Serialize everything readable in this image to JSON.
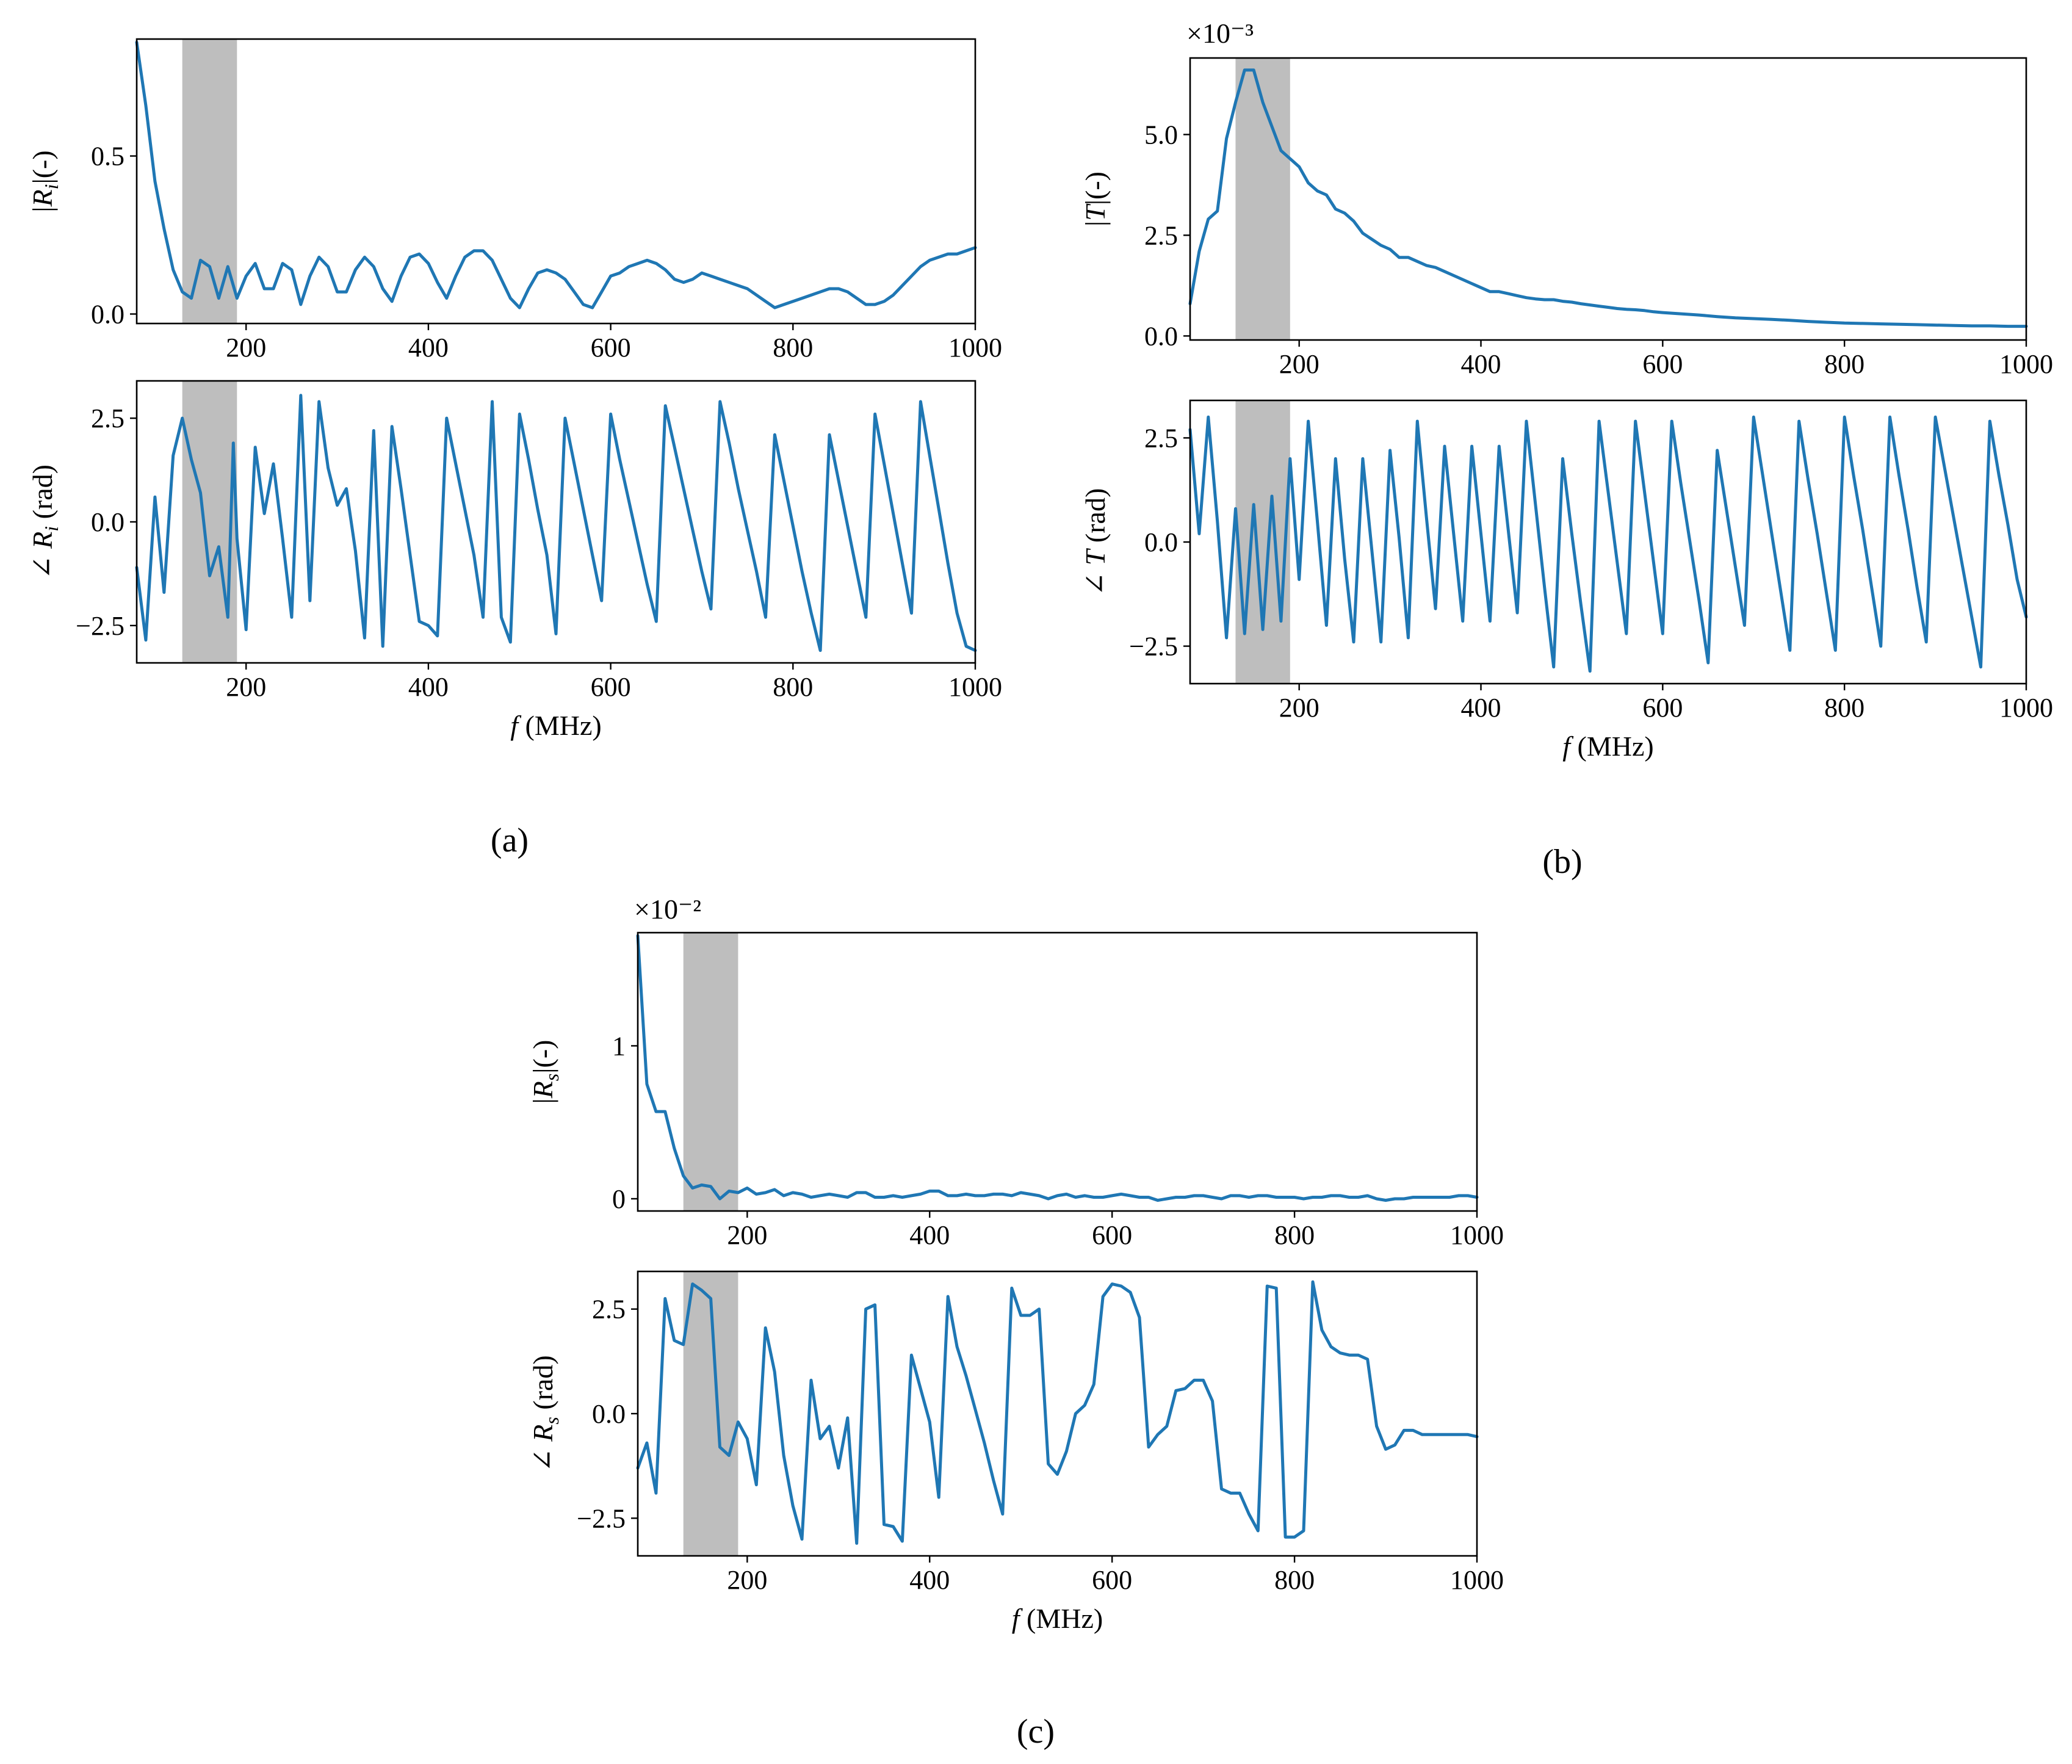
{
  "panel_labels": {
    "a": "(a)",
    "b": "(b)",
    "c": "(c)"
  },
  "colors": {
    "series": "#1f77b4",
    "band": "#bebebe",
    "axes": "#000000"
  },
  "chart_data": [
    {
      "id": "a_mag",
      "panel": "a",
      "type": "line",
      "xlabel": "",
      "ylabel": "|R_i|(-)",
      "xlim": [
        80,
        1000
      ],
      "ylim": [
        -0.03,
        0.87
      ],
      "xticks": [
        200,
        400,
        600,
        800,
        1000
      ],
      "xtick_labels": [
        "200",
        "400",
        "600",
        "800",
        "1000"
      ],
      "yticks": [
        0.0,
        0.5
      ],
      "ytick_labels": [
        "0.0",
        "0.5"
      ],
      "multiplier": "",
      "shaded_band": [
        130,
        190
      ],
      "x": [
        80,
        90,
        100,
        110,
        120,
        130,
        140,
        150,
        160,
        170,
        180,
        190,
        200,
        210,
        220,
        230,
        240,
        250,
        260,
        270,
        280,
        290,
        300,
        310,
        320,
        330,
        340,
        350,
        360,
        370,
        380,
        390,
        400,
        410,
        420,
        430,
        440,
        450,
        460,
        470,
        480,
        490,
        500,
        510,
        520,
        530,
        540,
        550,
        560,
        570,
        580,
        590,
        600,
        610,
        620,
        630,
        640,
        650,
        660,
        670,
        680,
        690,
        700,
        710,
        720,
        730,
        740,
        750,
        760,
        770,
        780,
        790,
        800,
        810,
        820,
        830,
        840,
        850,
        860,
        870,
        880,
        890,
        900,
        910,
        920,
        930,
        940,
        950,
        960,
        970,
        980,
        990,
        1000
      ],
      "y": [
        0.86,
        0.66,
        0.42,
        0.27,
        0.14,
        0.07,
        0.05,
        0.17,
        0.15,
        0.05,
        0.15,
        0.05,
        0.12,
        0.16,
        0.08,
        0.08,
        0.16,
        0.14,
        0.03,
        0.12,
        0.18,
        0.15,
        0.07,
        0.07,
        0.14,
        0.18,
        0.15,
        0.08,
        0.04,
        0.12,
        0.18,
        0.19,
        0.16,
        0.1,
        0.05,
        0.12,
        0.18,
        0.2,
        0.2,
        0.17,
        0.11,
        0.05,
        0.02,
        0.08,
        0.13,
        0.14,
        0.13,
        0.11,
        0.07,
        0.03,
        0.02,
        0.07,
        0.12,
        0.13,
        0.15,
        0.16,
        0.17,
        0.16,
        0.14,
        0.11,
        0.1,
        0.11,
        0.13,
        0.12,
        0.11,
        0.1,
        0.09,
        0.08,
        0.06,
        0.04,
        0.02,
        0.03,
        0.04,
        0.05,
        0.06,
        0.07,
        0.08,
        0.08,
        0.07,
        0.05,
        0.03,
        0.03,
        0.04,
        0.06,
        0.09,
        0.12,
        0.15,
        0.17,
        0.18,
        0.19,
        0.19,
        0.2,
        0.21
      ]
    },
    {
      "id": "a_phase",
      "panel": "a",
      "type": "line",
      "xlabel": "f (MHz)",
      "ylabel": "∠ R_i (rad)",
      "xlim": [
        80,
        1000
      ],
      "ylim": [
        -3.4,
        3.4
      ],
      "xticks": [
        200,
        400,
        600,
        800,
        1000
      ],
      "xtick_labels": [
        "200",
        "400",
        "600",
        "800",
        "1000"
      ],
      "yticks": [
        -2.5,
        0.0,
        2.5
      ],
      "ytick_labels": [
        "−2.5",
        "0.0",
        "2.5"
      ],
      "multiplier": "",
      "shaded_band": [
        130,
        190
      ],
      "x": [
        80,
        90,
        100,
        110,
        120,
        130,
        140,
        150,
        160,
        170,
        180,
        186,
        190,
        200,
        210,
        220,
        230,
        240,
        250,
        260,
        270,
        280,
        290,
        300,
        310,
        320,
        330,
        340,
        350,
        360,
        370,
        380,
        390,
        400,
        410,
        420,
        430,
        440,
        450,
        460,
        470,
        480,
        490,
        500,
        510,
        520,
        530,
        540,
        550,
        560,
        570,
        580,
        590,
        600,
        610,
        620,
        630,
        640,
        650,
        660,
        670,
        680,
        690,
        700,
        710,
        720,
        730,
        740,
        750,
        760,
        770,
        780,
        790,
        800,
        810,
        820,
        830,
        840,
        850,
        860,
        870,
        880,
        890,
        900,
        910,
        920,
        930,
        940,
        950,
        960,
        970,
        980,
        990,
        1000
      ],
      "y": [
        -1.1,
        -2.85,
        0.6,
        -1.7,
        1.6,
        2.5,
        1.5,
        0.7,
        -1.3,
        -0.6,
        -2.3,
        1.9,
        -0.4,
        -2.6,
        1.8,
        0.2,
        1.4,
        -0.4,
        -2.3,
        3.05,
        -1.9,
        2.9,
        1.3,
        0.4,
        0.8,
        -0.7,
        -2.8,
        2.2,
        -3.0,
        2.3,
        0.8,
        -0.8,
        -2.4,
        -2.5,
        -2.75,
        2.5,
        1.4,
        0.3,
        -0.8,
        -2.3,
        2.9,
        -2.3,
        -2.9,
        2.6,
        1.5,
        0.3,
        -0.8,
        -2.7,
        2.5,
        1.4,
        0.3,
        -0.8,
        -1.9,
        2.6,
        1.5,
        0.5,
        -0.5,
        -1.5,
        -2.4,
        2.8,
        1.8,
        0.8,
        -0.2,
        -1.2,
        -2.1,
        2.9,
        1.9,
        0.8,
        -0.2,
        -1.2,
        -2.3,
        2.1,
        1.0,
        -0.1,
        -1.2,
        -2.2,
        -3.1,
        2.1,
        1.0,
        -0.1,
        -1.2,
        -2.3,
        2.6,
        1.4,
        0.2,
        -1.0,
        -2.2,
        2.9,
        1.6,
        0.3,
        -1.0,
        -2.2,
        -3.0,
        -3.1
      ]
    },
    {
      "id": "b_mag",
      "panel": "b",
      "type": "line",
      "xlabel": "",
      "ylabel": "|T|(-)",
      "xlim": [
        80,
        1000
      ],
      "ylim": [
        -0.1,
        6.9
      ],
      "xticks": [
        200,
        400,
        600,
        800,
        1000
      ],
      "xtick_labels": [
        "200",
        "400",
        "600",
        "800",
        "1000"
      ],
      "yticks": [
        0.0,
        2.5,
        5.0
      ],
      "ytick_labels": [
        "0.0",
        "2.5",
        "5.0"
      ],
      "multiplier": "×10⁻³",
      "shaded_band": [
        130,
        190
      ],
      "x": [
        80,
        90,
        100,
        110,
        120,
        130,
        140,
        150,
        160,
        170,
        180,
        190,
        200,
        210,
        220,
        230,
        240,
        250,
        260,
        270,
        280,
        290,
        300,
        310,
        320,
        330,
        340,
        350,
        360,
        370,
        380,
        390,
        400,
        410,
        420,
        430,
        440,
        450,
        460,
        470,
        480,
        490,
        500,
        510,
        520,
        530,
        540,
        550,
        560,
        570,
        580,
        590,
        600,
        620,
        640,
        660,
        680,
        700,
        720,
        740,
        760,
        780,
        800,
        820,
        840,
        860,
        880,
        900,
        920,
        940,
        960,
        980,
        1000
      ],
      "y": [
        0.8,
        2.1,
        2.9,
        3.1,
        4.9,
        5.8,
        6.6,
        6.6,
        5.8,
        5.2,
        4.6,
        4.4,
        4.2,
        3.8,
        3.6,
        3.5,
        3.15,
        3.05,
        2.85,
        2.55,
        2.4,
        2.25,
        2.15,
        1.95,
        1.95,
        1.85,
        1.75,
        1.7,
        1.6,
        1.5,
        1.4,
        1.3,
        1.2,
        1.1,
        1.1,
        1.05,
        1.0,
        0.95,
        0.92,
        0.9,
        0.9,
        0.86,
        0.84,
        0.8,
        0.77,
        0.74,
        0.71,
        0.68,
        0.66,
        0.65,
        0.63,
        0.6,
        0.58,
        0.55,
        0.52,
        0.48,
        0.45,
        0.43,
        0.41,
        0.39,
        0.36,
        0.34,
        0.32,
        0.31,
        0.3,
        0.29,
        0.28,
        0.27,
        0.26,
        0.25,
        0.25,
        0.24,
        0.24
      ]
    },
    {
      "id": "b_phase",
      "panel": "b",
      "type": "line",
      "xlabel": "f (MHz)",
      "ylabel": "∠ T (rad)",
      "xlim": [
        80,
        1000
      ],
      "ylim": [
        -3.4,
        3.4
      ],
      "xticks": [
        200,
        400,
        600,
        800,
        1000
      ],
      "xtick_labels": [
        "200",
        "400",
        "600",
        "800",
        "1000"
      ],
      "yticks": [
        -2.5,
        0.0,
        2.5
      ],
      "ytick_labels": [
        "−2.5",
        "0.0",
        "2.5"
      ],
      "multiplier": "",
      "shaded_band": [
        130,
        190
      ],
      "x": [
        80,
        90,
        100,
        110,
        120,
        130,
        140,
        150,
        160,
        170,
        180,
        190,
        200,
        210,
        220,
        230,
        240,
        250,
        260,
        270,
        280,
        290,
        300,
        310,
        320,
        330,
        340,
        350,
        360,
        370,
        380,
        390,
        400,
        410,
        420,
        430,
        440,
        450,
        460,
        470,
        480,
        490,
        500,
        510,
        520,
        530,
        540,
        550,
        560,
        570,
        580,
        590,
        600,
        610,
        620,
        630,
        640,
        650,
        660,
        670,
        680,
        690,
        700,
        710,
        720,
        730,
        740,
        750,
        760,
        770,
        780,
        790,
        800,
        810,
        820,
        830,
        840,
        850,
        860,
        870,
        880,
        890,
        900,
        910,
        920,
        930,
        940,
        950,
        960,
        970,
        980,
        990,
        1000
      ],
      "y": [
        2.7,
        0.2,
        3.0,
        0.5,
        -2.3,
        0.8,
        -2.2,
        0.9,
        -2.1,
        1.1,
        -1.9,
        2.0,
        -0.9,
        2.9,
        0.5,
        -2.0,
        2.0,
        -0.4,
        -2.4,
        2.0,
        -0.2,
        -2.4,
        2.2,
        0.1,
        -2.3,
        2.9,
        0.6,
        -1.6,
        2.3,
        0.2,
        -1.9,
        2.3,
        0.2,
        -1.9,
        2.3,
        0.3,
        -1.7,
        2.9,
        0.9,
        -1.1,
        -3.0,
        2.0,
        0.2,
        -1.5,
        -3.1,
        2.9,
        1.2,
        -0.5,
        -2.2,
        2.9,
        1.2,
        -0.5,
        -2.2,
        2.9,
        1.4,
        0.0,
        -1.4,
        -2.9,
        2.2,
        0.8,
        -0.6,
        -2.0,
        3.0,
        1.6,
        0.2,
        -1.2,
        -2.6,
        2.9,
        1.5,
        0.2,
        -1.2,
        -2.6,
        3.0,
        1.6,
        0.3,
        -1.1,
        -2.5,
        3.0,
        1.6,
        0.3,
        -1.1,
        -2.4,
        3.0,
        1.8,
        0.6,
        -0.6,
        -1.8,
        -3.0,
        2.9,
        1.6,
        0.4,
        -0.9,
        -1.8
      ]
    },
    {
      "id": "c_mag",
      "panel": "c",
      "type": "line",
      "xlabel": "",
      "ylabel": "|R_s|(-)",
      "xlim": [
        80,
        1000
      ],
      "ylim": [
        -0.08,
        1.74
      ],
      "xticks": [
        200,
        400,
        600,
        800,
        1000
      ],
      "xtick_labels": [
        "200",
        "400",
        "600",
        "800",
        "1000"
      ],
      "yticks": [
        0,
        1
      ],
      "ytick_labels": [
        "0",
        "1"
      ],
      "multiplier": "×10⁻²",
      "shaded_band": [
        130,
        190
      ],
      "x": [
        80,
        90,
        100,
        110,
        120,
        130,
        140,
        150,
        160,
        170,
        180,
        190,
        200,
        210,
        220,
        230,
        240,
        250,
        260,
        270,
        280,
        290,
        300,
        310,
        320,
        330,
        340,
        350,
        360,
        370,
        380,
        390,
        400,
        410,
        420,
        430,
        440,
        450,
        460,
        470,
        480,
        490,
        500,
        510,
        520,
        530,
        540,
        550,
        560,
        570,
        580,
        590,
        600,
        610,
        620,
        630,
        640,
        650,
        660,
        670,
        680,
        690,
        700,
        710,
        720,
        730,
        740,
        750,
        760,
        770,
        780,
        790,
        800,
        810,
        820,
        830,
        840,
        850,
        860,
        870,
        880,
        890,
        900,
        910,
        920,
        930,
        940,
        950,
        960,
        970,
        980,
        990,
        1000
      ],
      "y": [
        1.72,
        0.75,
        0.57,
        0.57,
        0.33,
        0.15,
        0.07,
        0.09,
        0.08,
        0.0,
        0.05,
        0.04,
        0.07,
        0.03,
        0.04,
        0.06,
        0.02,
        0.04,
        0.03,
        0.01,
        0.02,
        0.03,
        0.02,
        0.01,
        0.04,
        0.04,
        0.01,
        0.01,
        0.02,
        0.01,
        0.02,
        0.03,
        0.05,
        0.05,
        0.02,
        0.02,
        0.03,
        0.02,
        0.02,
        0.03,
        0.03,
        0.02,
        0.04,
        0.03,
        0.02,
        0.0,
        0.02,
        0.03,
        0.01,
        0.02,
        0.01,
        0.01,
        0.02,
        0.03,
        0.02,
        0.01,
        0.01,
        -0.01,
        0.0,
        0.01,
        0.01,
        0.02,
        0.02,
        0.01,
        0.0,
        0.02,
        0.02,
        0.01,
        0.02,
        0.02,
        0.01,
        0.01,
        0.01,
        0.0,
        0.01,
        0.01,
        0.02,
        0.02,
        0.01,
        0.01,
        0.02,
        0.0,
        -0.01,
        0.0,
        0.0,
        0.01,
        0.01,
        0.01,
        0.01,
        0.01,
        0.02,
        0.02,
        0.01
      ]
    },
    {
      "id": "c_phase",
      "panel": "c",
      "type": "line",
      "xlabel": "f (MHz)",
      "ylabel": "∠ R_s (rad)",
      "xlim": [
        80,
        1000
      ],
      "ylim": [
        -3.4,
        3.4
      ],
      "xticks": [
        200,
        400,
        600,
        800,
        1000
      ],
      "xtick_labels": [
        "200",
        "400",
        "600",
        "800",
        "1000"
      ],
      "yticks": [
        -2.5,
        0.0,
        2.5
      ],
      "ytick_labels": [
        "−2.5",
        "0.0",
        "2.5"
      ],
      "multiplier": "",
      "shaded_band": [
        130,
        190
      ],
      "x": [
        80,
        90,
        100,
        110,
        120,
        130,
        140,
        150,
        160,
        170,
        180,
        190,
        200,
        210,
        220,
        230,
        240,
        250,
        260,
        270,
        280,
        290,
        300,
        310,
        320,
        330,
        340,
        350,
        360,
        370,
        380,
        390,
        400,
        410,
        420,
        430,
        440,
        450,
        460,
        470,
        480,
        490,
        500,
        510,
        520,
        530,
        540,
        550,
        560,
        570,
        580,
        590,
        600,
        610,
        620,
        630,
        640,
        650,
        660,
        670,
        680,
        690,
        700,
        710,
        720,
        730,
        740,
        750,
        760,
        770,
        780,
        790,
        800,
        810,
        820,
        830,
        840,
        850,
        860,
        870,
        880,
        890,
        900,
        910,
        920,
        930,
        940,
        950,
        960,
        970,
        980,
        990,
        1000
      ],
      "y": [
        -1.3,
        -0.7,
        -1.9,
        2.75,
        1.75,
        1.65,
        3.1,
        2.95,
        2.75,
        -0.8,
        -1.0,
        -0.2,
        -0.6,
        -1.7,
        2.05,
        1.0,
        -1.0,
        -2.2,
        -3.0,
        0.8,
        -0.6,
        -0.3,
        -1.3,
        -0.1,
        -3.1,
        2.5,
        2.6,
        -2.65,
        -2.7,
        -3.05,
        1.4,
        0.6,
        -0.2,
        -2.0,
        2.8,
        1.6,
        0.9,
        0.1,
        -0.7,
        -1.6,
        -2.4,
        3.0,
        2.35,
        2.35,
        2.5,
        -1.2,
        -1.45,
        -0.9,
        0.0,
        0.2,
        0.7,
        2.8,
        3.1,
        3.05,
        2.9,
        2.3,
        -0.8,
        -0.5,
        -0.3,
        0.55,
        0.6,
        0.8,
        0.8,
        0.3,
        -1.8,
        -1.9,
        -1.9,
        -2.4,
        -2.8,
        3.05,
        3.0,
        -2.95,
        -2.95,
        -2.8,
        3.15,
        2.0,
        1.6,
        1.45,
        1.4,
        1.4,
        1.3,
        -0.3,
        -0.85,
        -0.75,
        -0.4,
        -0.4,
        -0.5,
        -0.5,
        -0.5,
        -0.5,
        -0.5,
        -0.5,
        -0.55
      ]
    }
  ]
}
